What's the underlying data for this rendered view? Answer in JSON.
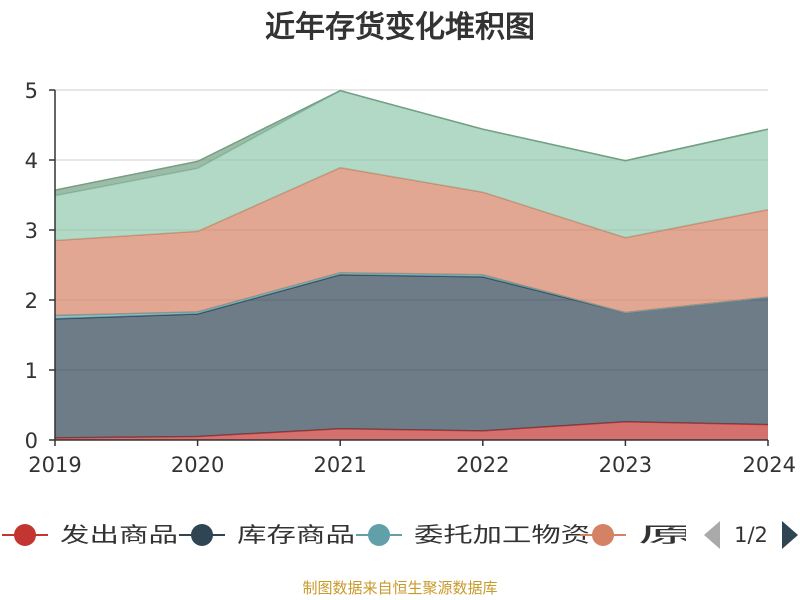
{
  "chart_data": {
    "type": "area",
    "stacked": true,
    "title": "近年存货变化堆积图",
    "x": [
      "2019",
      "2020",
      "2021",
      "2022",
      "2023",
      "2024"
    ],
    "ylim": [
      0,
      5
    ],
    "yticks": [
      "0",
      "1",
      "2",
      "3",
      "4",
      "5"
    ],
    "grid": true,
    "series": [
      {
        "name": "发出商品",
        "color": "#c23531",
        "values": [
          0.03,
          0.05,
          0.16,
          0.13,
          0.26,
          0.22
        ]
      },
      {
        "name": "库存商品",
        "color": "#2f4554",
        "values": [
          1.7,
          1.75,
          2.2,
          2.2,
          1.56,
          1.82
        ]
      },
      {
        "name": "委托加工物资",
        "color": "#61a0a8",
        "values": [
          0.05,
          0.03,
          0.03,
          0.03,
          0.0,
          0.0
        ]
      },
      {
        "name": "原材料",
        "color": "#d48265",
        "values": [
          1.07,
          1.15,
          1.5,
          1.18,
          1.07,
          1.25
        ]
      },
      {
        "name": "",
        "color": "#91c7ae",
        "values": [
          0.64,
          0.9,
          1.1,
          0.9,
          1.1,
          1.15
        ]
      },
      {
        "name": "",
        "color": "#749f83",
        "values": [
          0.08,
          0.1,
          0.0,
          0.0,
          0.0,
          0.0
        ]
      }
    ],
    "legend": {
      "position": "bottom",
      "items": [
        "发出商品",
        "库存商品",
        "委托加工物资",
        "原材"
      ],
      "page": "1/2"
    }
  },
  "source_text": "制图数据来自恒生聚源数据库"
}
